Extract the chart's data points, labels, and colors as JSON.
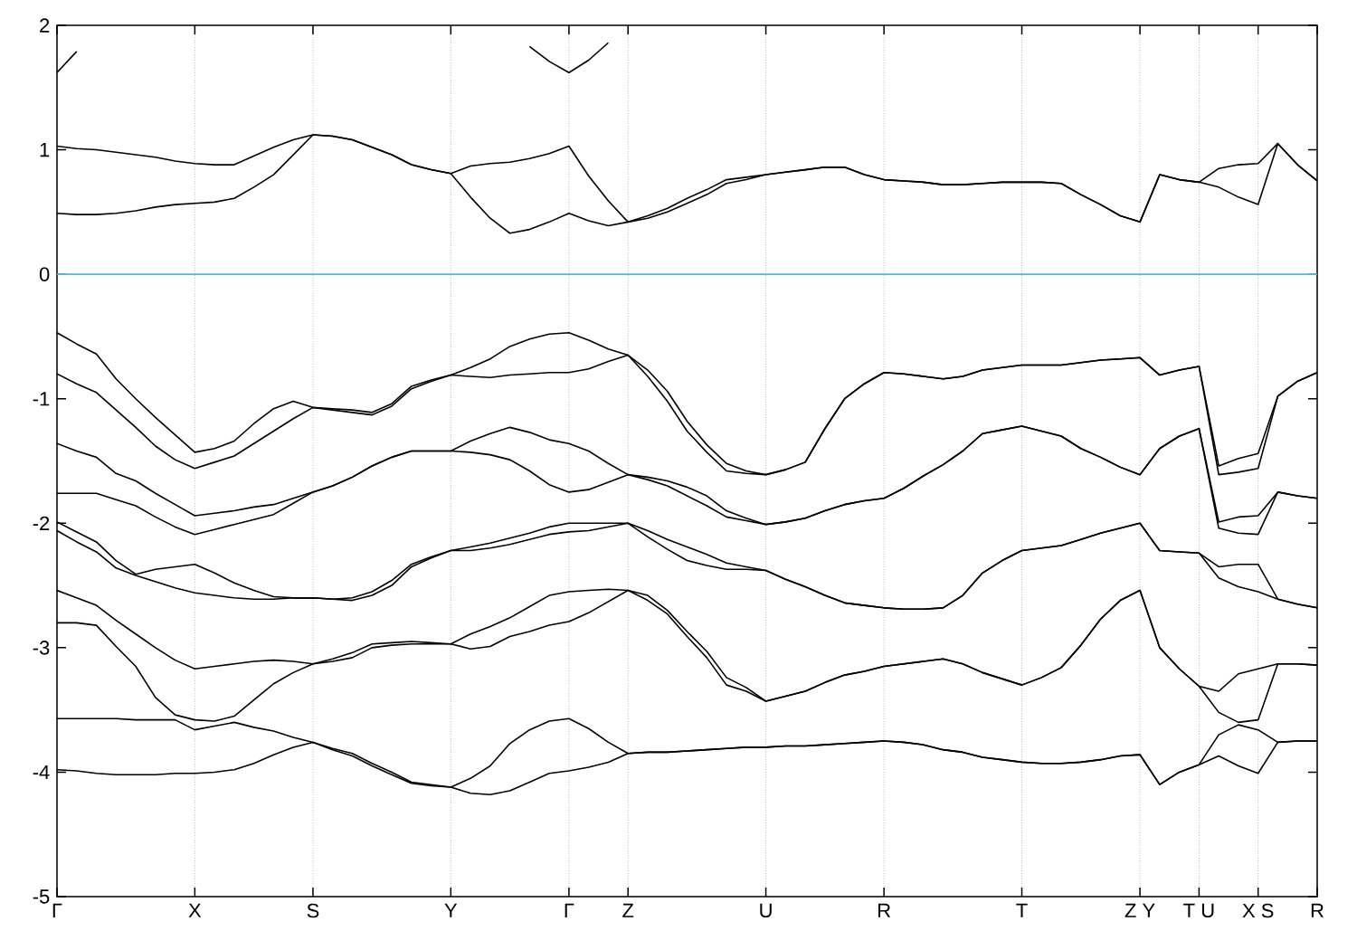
{
  "chart_data": {
    "type": "line",
    "categories": [
      "Γ",
      null,
      null,
      null,
      null,
      null,
      null,
      "X",
      null,
      null,
      null,
      null,
      null,
      "S",
      null,
      null,
      null,
      null,
      null,
      null,
      "Y",
      null,
      null,
      null,
      null,
      null,
      "Γ",
      null,
      null,
      "Z",
      null,
      null,
      null,
      null,
      null,
      null,
      "U",
      null,
      null,
      null,
      null,
      null,
      "R",
      null,
      null,
      null,
      null,
      null,
      null,
      "T",
      null,
      null,
      null,
      null,
      null,
      "Z Y",
      null,
      null,
      "T U",
      null,
      null,
      "X S",
      null,
      null,
      "R"
    ],
    "ylim": [
      -5,
      2
    ],
    "yticks": [
      -5,
      -4,
      -3,
      -2,
      -1,
      0,
      1,
      2
    ],
    "grid": "x",
    "ref_lines": [
      {
        "axis": "y",
        "value": 0,
        "color": "#56b4e9"
      }
    ],
    "series": [
      {
        "color": "#000000",
        "values": [
          1.62,
          1.79,
          null,
          null,
          null,
          null,
          null,
          null,
          null,
          null,
          null,
          null,
          null,
          null,
          null,
          null,
          null,
          null,
          null,
          null,
          null,
          null,
          null,
          null,
          1.83,
          1.71,
          1.62,
          1.72,
          1.86,
          null,
          null,
          null,
          null,
          null,
          null,
          null,
          null,
          null,
          null,
          null,
          null,
          null,
          null,
          null,
          null,
          null,
          null,
          null,
          null,
          null,
          null,
          null,
          null,
          null,
          null,
          null,
          null,
          null,
          null,
          null,
          null,
          null,
          null,
          null,
          null
        ]
      },
      {
        "color": "#000000",
        "values": [
          1.03,
          1.01,
          1.0,
          0.98,
          0.96,
          0.94,
          0.91,
          0.89,
          0.88,
          0.88,
          0.95,
          1.02,
          1.08,
          1.12,
          1.11,
          1.08,
          1.02,
          0.96,
          0.88,
          0.84,
          0.81,
          0.87,
          0.89,
          0.9,
          0.93,
          0.97,
          1.03,
          0.79,
          0.59,
          0.42,
          0.47,
          0.53,
          0.61,
          0.68,
          0.76,
          0.78,
          0.8,
          0.82,
          0.84,
          0.86,
          0.86,
          0.8,
          0.76,
          0.75,
          0.74,
          0.72,
          0.72,
          0.73,
          0.74,
          0.74,
          0.74,
          0.73,
          0.64,
          0.56,
          0.47,
          0.42,
          0.8,
          0.76,
          0.74,
          0.85,
          0.88,
          0.89,
          1.05,
          0.88,
          0.75
        ]
      },
      {
        "color": "#000000",
        "values": [
          0.49,
          0.48,
          0.48,
          0.49,
          0.51,
          0.54,
          0.56,
          0.57,
          0.58,
          0.61,
          0.7,
          0.8,
          0.96,
          1.12,
          1.11,
          1.08,
          1.02,
          0.96,
          0.88,
          0.84,
          0.81,
          0.62,
          0.45,
          0.33,
          0.36,
          0.42,
          0.49,
          0.43,
          0.39,
          0.42,
          0.45,
          0.5,
          0.57,
          0.64,
          0.73,
          0.76,
          0.8,
          0.82,
          0.84,
          0.86,
          0.86,
          0.8,
          0.76,
          0.75,
          0.74,
          0.72,
          0.72,
          0.73,
          0.74,
          0.74,
          0.74,
          0.73,
          0.64,
          0.56,
          0.47,
          0.42,
          0.8,
          0.76,
          0.74,
          0.7,
          0.62,
          0.56,
          1.05,
          0.88,
          0.75
        ]
      },
      {
        "color": "#000000",
        "values": [
          -0.47,
          -0.56,
          -0.64,
          -0.84,
          -1.0,
          -1.15,
          -1.29,
          -1.43,
          -1.4,
          -1.34,
          -1.2,
          -1.08,
          -1.02,
          -1.07,
          -1.08,
          -1.09,
          -1.11,
          -1.04,
          -0.9,
          -0.85,
          -0.81,
          -0.75,
          -0.68,
          -0.58,
          -0.52,
          -0.48,
          -0.47,
          -0.53,
          -0.6,
          -0.65,
          -0.77,
          -0.94,
          -1.18,
          -1.37,
          -1.52,
          -1.58,
          -1.61,
          -1.57,
          -1.51,
          -1.24,
          -1.0,
          -0.88,
          -0.79,
          -0.8,
          -0.82,
          -0.84,
          -0.82,
          -0.77,
          -0.75,
          -0.73,
          -0.73,
          -0.73,
          -0.71,
          -0.69,
          -0.68,
          -0.67,
          -0.81,
          -0.77,
          -0.74,
          -1.54,
          -1.48,
          -1.44,
          -0.98,
          -0.86,
          -0.79
        ]
      },
      {
        "color": "#000000",
        "values": [
          -0.8,
          -0.88,
          -0.95,
          -1.09,
          -1.23,
          -1.38,
          -1.49,
          -1.56,
          -1.51,
          -1.46,
          -1.36,
          -1.26,
          -1.16,
          -1.07,
          -1.09,
          -1.11,
          -1.13,
          -1.06,
          -0.92,
          -0.86,
          -0.81,
          -0.82,
          -0.83,
          -0.81,
          -0.8,
          -0.79,
          -0.79,
          -0.76,
          -0.7,
          -0.65,
          -0.82,
          -1.02,
          -1.26,
          -1.43,
          -1.58,
          -1.6,
          -1.61,
          -1.57,
          -1.51,
          -1.24,
          -1.0,
          -0.88,
          -0.79,
          -0.8,
          -0.82,
          -0.84,
          -0.82,
          -0.77,
          -0.75,
          -0.73,
          -0.73,
          -0.73,
          -0.71,
          -0.69,
          -0.68,
          -0.67,
          -0.81,
          -0.77,
          -0.74,
          -1.61,
          -1.59,
          -1.56,
          -0.98,
          -0.86,
          -0.79
        ]
      },
      {
        "color": "#000000",
        "values": [
          -1.36,
          -1.42,
          -1.47,
          -1.6,
          -1.66,
          -1.76,
          -1.85,
          -1.94,
          -1.92,
          -1.9,
          -1.87,
          -1.85,
          -1.8,
          -1.75,
          -1.7,
          -1.63,
          -1.54,
          -1.47,
          -1.42,
          -1.42,
          -1.42,
          -1.34,
          -1.28,
          -1.23,
          -1.27,
          -1.33,
          -1.36,
          -1.42,
          -1.52,
          -1.61,
          -1.63,
          -1.66,
          -1.71,
          -1.78,
          -1.9,
          -1.96,
          -2.01,
          -1.99,
          -1.96,
          -1.9,
          -1.85,
          -1.82,
          -1.8,
          -1.72,
          -1.62,
          -1.53,
          -1.42,
          -1.28,
          -1.25,
          -1.22,
          -1.26,
          -1.3,
          -1.4,
          -1.47,
          -1.55,
          -1.61,
          -1.4,
          -1.3,
          -1.24,
          -1.99,
          -1.95,
          -1.94,
          -1.75,
          -1.78,
          -1.8
        ]
      },
      {
        "color": "#000000",
        "values": [
          -1.76,
          -1.76,
          -1.76,
          -1.81,
          -1.86,
          -1.95,
          -2.03,
          -2.09,
          -2.05,
          -2.01,
          -1.97,
          -1.93,
          -1.84,
          -1.75,
          -1.7,
          -1.63,
          -1.54,
          -1.47,
          -1.42,
          -1.42,
          -1.42,
          -1.43,
          -1.45,
          -1.49,
          -1.58,
          -1.69,
          -1.75,
          -1.73,
          -1.67,
          -1.61,
          -1.65,
          -1.7,
          -1.78,
          -1.86,
          -1.95,
          -1.98,
          -2.01,
          -1.99,
          -1.96,
          -1.9,
          -1.85,
          -1.82,
          -1.8,
          -1.72,
          -1.62,
          -1.53,
          -1.42,
          -1.28,
          -1.25,
          -1.22,
          -1.26,
          -1.3,
          -1.4,
          -1.47,
          -1.55,
          -1.61,
          -1.4,
          -1.3,
          -1.24,
          -2.04,
          -2.08,
          -2.09,
          -1.75,
          -1.78,
          -1.8
        ]
      },
      {
        "color": "#000000",
        "values": [
          -1.99,
          -2.07,
          -2.15,
          -2.3,
          -2.41,
          -2.37,
          -2.35,
          -2.33,
          -2.4,
          -2.48,
          -2.54,
          -2.59,
          -2.6,
          -2.6,
          -2.61,
          -2.6,
          -2.55,
          -2.46,
          -2.33,
          -2.27,
          -2.22,
          -2.19,
          -2.16,
          -2.12,
          -2.08,
          -2.03,
          -2.0,
          -2.0,
          -2.0,
          -2.0,
          -2.06,
          -2.13,
          -2.19,
          -2.25,
          -2.32,
          -2.35,
          -2.38,
          -2.45,
          -2.51,
          -2.58,
          -2.64,
          -2.66,
          -2.68,
          -2.69,
          -2.69,
          -2.68,
          -2.58,
          -2.4,
          -2.3,
          -2.22,
          -2.2,
          -2.18,
          -2.13,
          -2.08,
          -2.04,
          -2.0,
          -2.22,
          -2.23,
          -2.24,
          -2.35,
          -2.33,
          -2.33,
          -2.61,
          -2.65,
          -2.68
        ]
      },
      {
        "color": "#000000",
        "values": [
          -2.06,
          -2.15,
          -2.23,
          -2.36,
          -2.42,
          -2.47,
          -2.52,
          -2.56,
          -2.58,
          -2.6,
          -2.61,
          -2.61,
          -2.6,
          -2.6,
          -2.61,
          -2.62,
          -2.58,
          -2.5,
          -2.35,
          -2.28,
          -2.22,
          -2.22,
          -2.2,
          -2.17,
          -2.13,
          -2.09,
          -2.07,
          -2.06,
          -2.03,
          -2.0,
          -2.11,
          -2.21,
          -2.3,
          -2.34,
          -2.37,
          -2.37,
          -2.38,
          -2.45,
          -2.51,
          -2.58,
          -2.64,
          -2.66,
          -2.68,
          -2.69,
          -2.69,
          -2.68,
          -2.58,
          -2.4,
          -2.3,
          -2.22,
          -2.2,
          -2.18,
          -2.13,
          -2.08,
          -2.04,
          -2.0,
          -2.22,
          -2.23,
          -2.24,
          -2.44,
          -2.51,
          -2.55,
          -2.61,
          -2.65,
          -2.68
        ]
      },
      {
        "color": "#000000",
        "values": [
          -2.54,
          -2.6,
          -2.66,
          -2.78,
          -2.89,
          -3.0,
          -3.1,
          -3.17,
          -3.15,
          -3.13,
          -3.11,
          -3.1,
          -3.11,
          -3.13,
          -3.09,
          -3.04,
          -2.97,
          -2.96,
          -2.95,
          -2.96,
          -2.97,
          -2.89,
          -2.83,
          -2.76,
          -2.67,
          -2.58,
          -2.55,
          -2.54,
          -2.53,
          -2.54,
          -2.58,
          -2.7,
          -2.87,
          -3.03,
          -3.24,
          -3.32,
          -3.43,
          -3.39,
          -3.35,
          -3.28,
          -3.22,
          -3.19,
          -3.15,
          -3.13,
          -3.11,
          -3.09,
          -3.13,
          -3.2,
          -3.25,
          -3.3,
          -3.24,
          -3.16,
          -2.98,
          -2.77,
          -2.62,
          -2.54,
          -3.0,
          -3.17,
          -3.31,
          -3.35,
          -3.21,
          -3.17,
          -3.13,
          -3.13,
          -3.14
        ]
      },
      {
        "color": "#000000",
        "values": [
          -2.8,
          -2.8,
          -2.82,
          -2.99,
          -3.15,
          -3.4,
          -3.54,
          -3.58,
          -3.59,
          -3.55,
          -3.42,
          -3.29,
          -3.2,
          -3.13,
          -3.11,
          -3.08,
          -3.0,
          -2.98,
          -2.97,
          -2.97,
          -2.97,
          -3.01,
          -2.99,
          -2.91,
          -2.87,
          -2.82,
          -2.79,
          -2.72,
          -2.63,
          -2.54,
          -2.62,
          -2.73,
          -2.91,
          -3.08,
          -3.3,
          -3.35,
          -3.43,
          -3.39,
          -3.35,
          -3.28,
          -3.22,
          -3.19,
          -3.15,
          -3.13,
          -3.11,
          -3.09,
          -3.13,
          -3.2,
          -3.25,
          -3.3,
          -3.24,
          -3.16,
          -2.98,
          -2.77,
          -2.62,
          -2.54,
          -3.0,
          -3.17,
          -3.31,
          -3.52,
          -3.6,
          -3.58,
          -3.13,
          -3.13,
          -3.14
        ]
      },
      {
        "color": "#000000",
        "values": [
          -3.57,
          -3.57,
          -3.57,
          -3.57,
          -3.58,
          -3.58,
          -3.58,
          -3.66,
          -3.63,
          -3.6,
          -3.64,
          -3.67,
          -3.72,
          -3.76,
          -3.81,
          -3.85,
          -3.93,
          -4.0,
          -4.08,
          -4.1,
          -4.12,
          -4.05,
          -3.95,
          -3.77,
          -3.66,
          -3.59,
          -3.57,
          -3.65,
          -3.76,
          -3.85,
          -3.84,
          -3.84,
          -3.83,
          -3.82,
          -3.81,
          -3.8,
          -3.8,
          -3.79,
          -3.79,
          -3.78,
          -3.77,
          -3.76,
          -3.75,
          -3.76,
          -3.78,
          -3.82,
          -3.84,
          -3.88,
          -3.9,
          -3.92,
          -3.93,
          -3.93,
          -3.92,
          -3.9,
          -3.87,
          -3.86,
          -4.1,
          -4.0,
          -3.94,
          -3.7,
          -3.62,
          -3.66,
          -3.76,
          -3.75,
          -3.75
        ]
      },
      {
        "color": "#000000",
        "values": [
          -3.98,
          -3.99,
          -4.01,
          -4.02,
          -4.02,
          -4.02,
          -4.01,
          -4.01,
          -4.0,
          -3.98,
          -3.93,
          -3.86,
          -3.8,
          -3.76,
          -3.82,
          -3.87,
          -3.95,
          -4.02,
          -4.09,
          -4.11,
          -4.12,
          -4.17,
          -4.18,
          -4.15,
          -4.08,
          -4.01,
          -3.99,
          -3.96,
          -3.92,
          -3.85,
          -3.84,
          -3.84,
          -3.83,
          -3.82,
          -3.81,
          -3.8,
          -3.8,
          -3.79,
          -3.79,
          -3.78,
          -3.77,
          -3.76,
          -3.75,
          -3.76,
          -3.78,
          -3.82,
          -3.84,
          -3.88,
          -3.9,
          -3.92,
          -3.93,
          -3.93,
          -3.92,
          -3.9,
          -3.87,
          -3.86,
          -4.1,
          -4.0,
          -3.94,
          -3.87,
          -3.95,
          -4.01,
          -3.76,
          -3.75,
          -3.75
        ]
      }
    ]
  }
}
